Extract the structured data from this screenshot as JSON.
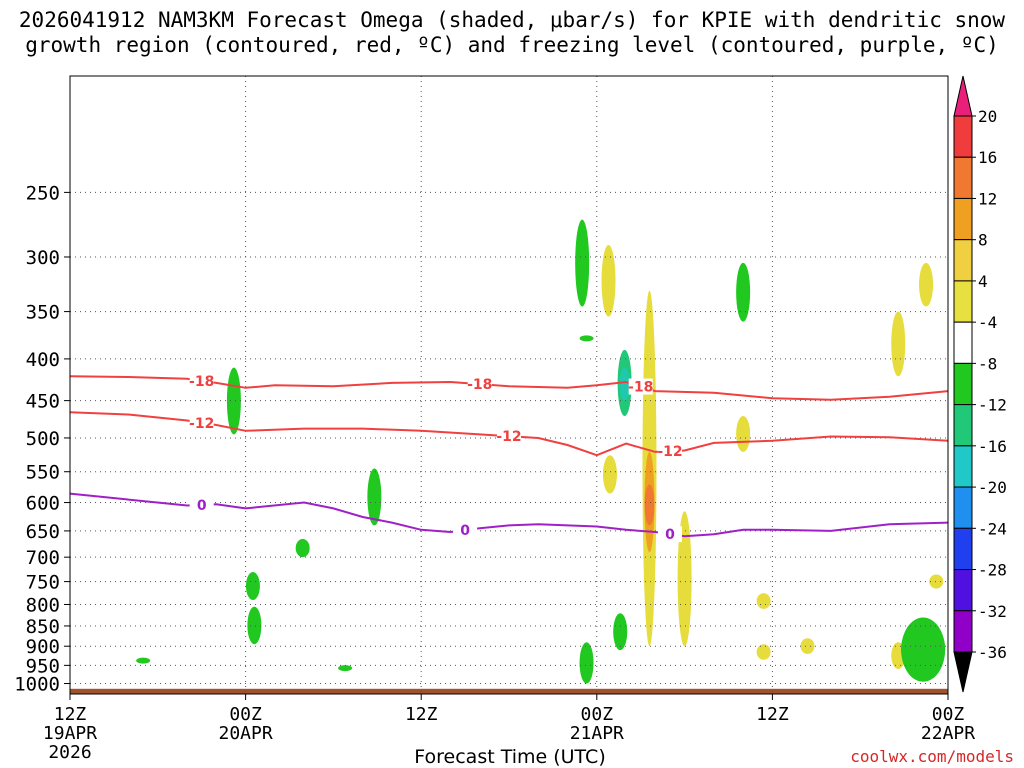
{
  "title": {
    "line1": "2026041912 NAM3KM Forecast Omega (shaded, μbar/s) for KPIE with dendritic snow",
    "line2": "growth region (contoured, red, ºC) and freezing level (contoured, purple, ºC)"
  },
  "credit": "coolwx.com/models",
  "chart_data": {
    "type": "heatmap",
    "title": "2026041912 NAM3KM Forecast Omega (shaded, μbar/s) for KPIE with dendritic snow growth region (contoured, red, ºC) and freezing level (contoured, purple, ºC)",
    "xlabel": "Forecast Time (UTC)",
    "ylabel": "",
    "x_unit": "forecast hour from 2026-04-19 12Z",
    "xlim": [
      0,
      60
    ],
    "ylim": [
      1030,
      180
    ],
    "y_scale": "log-pressure",
    "x_ticks": [
      {
        "hour": 0,
        "lines": [
          "12Z",
          "19APR",
          "2026"
        ]
      },
      {
        "hour": 12,
        "lines": [
          "00Z",
          "20APR"
        ]
      },
      {
        "hour": 24,
        "lines": [
          "12Z"
        ]
      },
      {
        "hour": 36,
        "lines": [
          "00Z",
          "21APR"
        ]
      },
      {
        "hour": 48,
        "lines": [
          "12Z"
        ]
      },
      {
        "hour": 60,
        "lines": [
          "00Z",
          "22APR"
        ]
      }
    ],
    "y_ticks": [
      250,
      300,
      350,
      400,
      450,
      500,
      550,
      600,
      650,
      700,
      750,
      800,
      850,
      900,
      950,
      1000
    ],
    "grid": true,
    "colorbar": {
      "labels": [
        "20",
        "16",
        "12",
        "8",
        "4",
        "-4",
        "-8",
        "-12",
        "-16",
        "-20",
        "-24",
        "-28",
        "-32",
        "-36"
      ],
      "colors": [
        "#e8207a",
        "#f03c3c",
        "#f07830",
        "#f0a020",
        "#f0d040",
        "#e8e040",
        "#ffffff",
        "#20c820",
        "#20c878",
        "#20c8c8",
        "#2090f0",
        "#2040f0",
        "#5010e0",
        "#9000c8",
        "#a0a0a0",
        "#000000"
      ]
    },
    "isotherms": [
      {
        "value": -18,
        "label": "-18",
        "color": "#f04040",
        "x": [
          0,
          4,
          8,
          10,
          12,
          14,
          18,
          22,
          26,
          30,
          34,
          36,
          38,
          40,
          44,
          48,
          52,
          56,
          60
        ],
        "y": [
          420,
          421,
          423,
          428,
          434,
          431,
          432,
          428,
          427,
          432,
          434,
          431,
          427,
          438,
          440,
          447,
          449,
          445,
          438
        ]
      },
      {
        "value": -12,
        "label": "-12",
        "color": "#f04040",
        "x": [
          0,
          4,
          8,
          10,
          12,
          16,
          20,
          24,
          28,
          32,
          34,
          36,
          38,
          40,
          42,
          44,
          48,
          52,
          56,
          60
        ],
        "y": [
          465,
          468,
          476,
          482,
          490,
          487,
          487,
          490,
          495,
          500,
          510,
          525,
          508,
          520,
          518,
          507,
          504,
          498,
          499,
          504
        ]
      },
      {
        "value": 0,
        "label": "0",
        "color": "#a020c8",
        "x": [
          0,
          4,
          8,
          10,
          12,
          16,
          18,
          20,
          22,
          24,
          26,
          28,
          30,
          32,
          34,
          36,
          38,
          40,
          42,
          44,
          46,
          48,
          52,
          56,
          60
        ],
        "y": [
          585,
          595,
          605,
          603,
          610,
          600,
          610,
          625,
          635,
          648,
          652,
          645,
          640,
          638,
          640,
          642,
          648,
          652,
          660,
          656,
          648,
          648,
          650,
          638,
          635
        ]
      }
    ],
    "omega_cells": [
      {
        "hour": 11.2,
        "p_top": 410,
        "p_bot": 495,
        "value": -6
      },
      {
        "hour": 12.5,
        "p_top": 730,
        "p_bot": 790,
        "value": -6
      },
      {
        "hour": 12.6,
        "p_top": 805,
        "p_bot": 895,
        "value": -6
      },
      {
        "hour": 15.9,
        "p_top": 665,
        "p_bot": 700,
        "value": -6
      },
      {
        "hour": 20.8,
        "p_top": 545,
        "p_bot": 640,
        "value": -6
      },
      {
        "hour": 5.0,
        "p_top": 930,
        "p_bot": 945,
        "value": -6
      },
      {
        "hour": 18.8,
        "p_top": 955,
        "p_bot": 960,
        "value": -6
      },
      {
        "hour": 35.0,
        "p_top": 270,
        "p_bot": 345,
        "value": -6
      },
      {
        "hour": 35.3,
        "p_top": 375,
        "p_bot": 380,
        "value": -6
      },
      {
        "hour": 36.8,
        "p_top": 290,
        "p_bot": 355,
        "value": 6
      },
      {
        "hour": 37.9,
        "p_top": 390,
        "p_bot": 470,
        "value": -8
      },
      {
        "hour": 37.9,
        "p_top": 410,
        "p_bot": 450,
        "value": -12
      },
      {
        "hour": 35.3,
        "p_top": 890,
        "p_bot": 1000,
        "value": -6
      },
      {
        "hour": 37.6,
        "p_top": 820,
        "p_bot": 910,
        "value": -6
      },
      {
        "hour": 36.9,
        "p_top": 525,
        "p_bot": 585,
        "value": 6
      },
      {
        "hour": 39.6,
        "p_top": 330,
        "p_bot": 900,
        "value": 6
      },
      {
        "hour": 39.6,
        "p_top": 520,
        "p_bot": 690,
        "value": 10
      },
      {
        "hour": 39.6,
        "p_top": 570,
        "p_bot": 640,
        "value": 14
      },
      {
        "hour": 42.0,
        "p_top": 615,
        "p_bot": 900,
        "value": 6
      },
      {
        "hour": 46.0,
        "p_top": 305,
        "p_bot": 360,
        "value": -6
      },
      {
        "hour": 46.0,
        "p_top": 470,
        "p_bot": 520,
        "value": 6
      },
      {
        "hour": 47.4,
        "p_top": 775,
        "p_bot": 810,
        "value": 6
      },
      {
        "hour": 47.4,
        "p_top": 895,
        "p_bot": 935,
        "value": 6
      },
      {
        "hour": 50.4,
        "p_top": 880,
        "p_bot": 920,
        "value": 6
      },
      {
        "hour": 56.6,
        "p_top": 350,
        "p_bot": 420,
        "value": 6
      },
      {
        "hour": 58.5,
        "p_top": 305,
        "p_bot": 345,
        "value": 6
      },
      {
        "hour": 59.2,
        "p_top": 735,
        "p_bot": 765,
        "value": 6
      },
      {
        "hour": 56.6,
        "p_top": 890,
        "p_bot": 960,
        "value": 6
      },
      {
        "hour": 58.3,
        "p_top": 830,
        "p_bot": 995,
        "value": -7
      },
      {
        "hour": 58.3,
        "p_top": 840,
        "p_bot": 980,
        "value": -6
      }
    ],
    "surface_pressure": 1015
  }
}
